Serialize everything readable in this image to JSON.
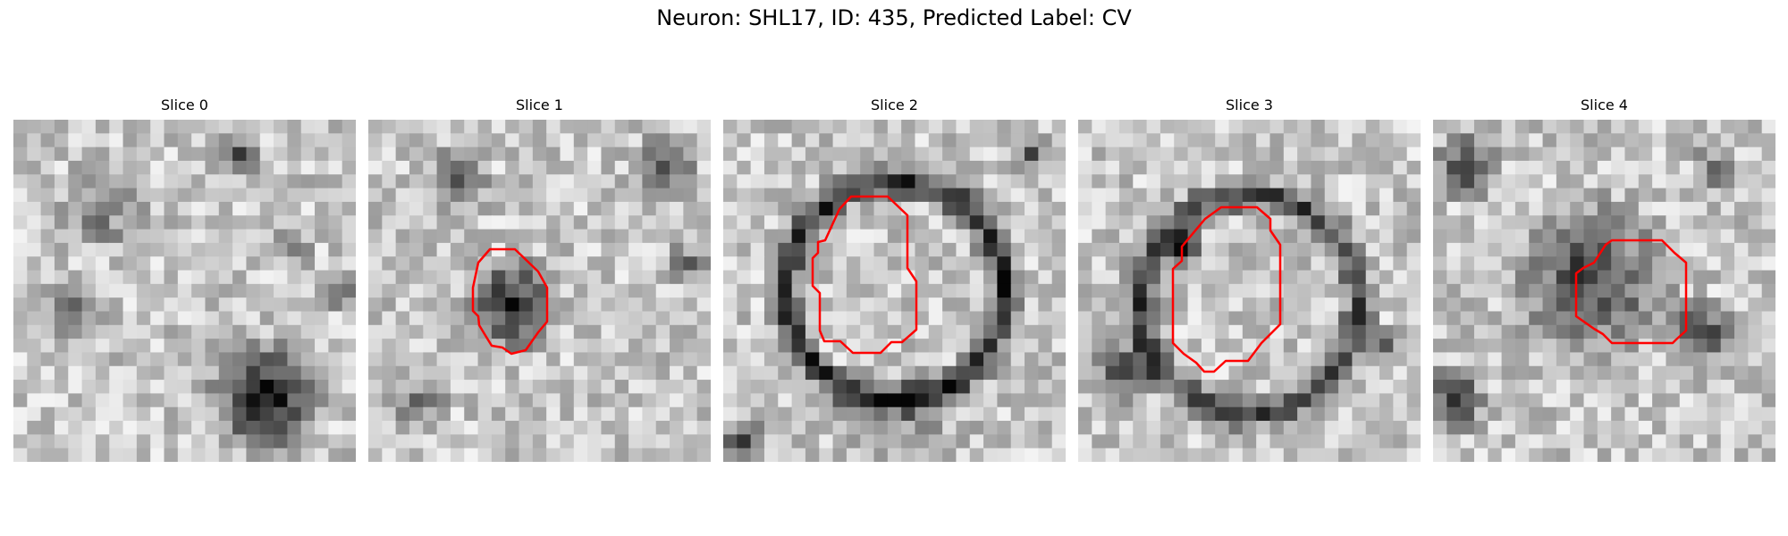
{
  "figure": {
    "title": "Neuron: SHL17, ID: 435, Predicted Label: CV",
    "contour_color": "#ff0000"
  },
  "panels": [
    {
      "title": "Slice 0",
      "has_contour": false,
      "seed": 11
    },
    {
      "title": "Slice 1",
      "has_contour": true,
      "seed": 23
    },
    {
      "title": "Slice 2",
      "has_contour": true,
      "seed": 37
    },
    {
      "title": "Slice 3",
      "has_contour": true,
      "seed": 51
    },
    {
      "title": "Slice 4",
      "has_contour": true,
      "seed": 67
    }
  ]
}
